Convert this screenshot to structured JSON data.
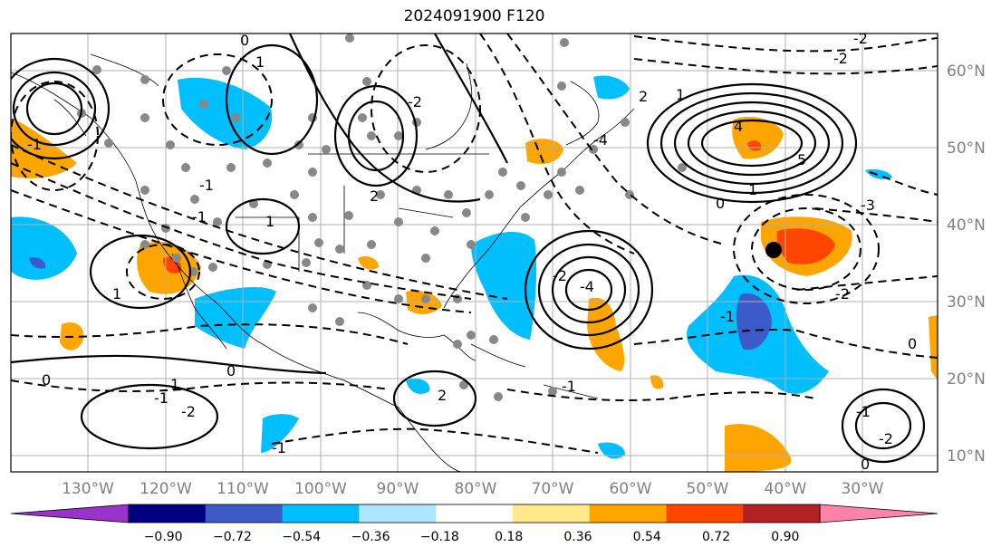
{
  "title": "2024091900 F120",
  "map": {
    "lon_ticks": [
      "130°W",
      "120°W",
      "110°W",
      "100°W",
      "90°W",
      "80°W",
      "70°W",
      "60°W",
      "50°W",
      "40°W",
      "30°W"
    ],
    "lat_ticks": [
      "60°N",
      "50°N",
      "40°N",
      "30°N",
      "20°N",
      "10°N"
    ],
    "contour_labels": [
      "0",
      "1",
      "-1",
      "-2",
      "2",
      "-1",
      "-1",
      "1",
      "1",
      "0",
      "0",
      "-1",
      "1",
      "-2",
      "2",
      "-2",
      "-4",
      "4",
      "5",
      "-4",
      "2",
      "1",
      "0",
      "-2",
      "-3",
      "-2",
      "-1",
      "0",
      "-2",
      "-1",
      "0",
      "-1",
      "-2",
      "1",
      "-1"
    ],
    "marker_lon": "40°W",
    "marker_lat": "37°N"
  },
  "colorbar": {
    "levels": [
      "−0.90",
      "−0.72",
      "−0.54",
      "−0.36",
      "−0.18",
      "0.18",
      "0.36",
      "0.54",
      "0.72",
      "0.90"
    ],
    "colors": [
      "#9933cc",
      "#000080",
      "#3c5ac8",
      "#00bfff",
      "#aee6ff",
      "#ffffff",
      "#ffe98a",
      "#ffa500",
      "#ff4500",
      "#b22222",
      "#ff82ab",
      "#ff82ab"
    ]
  }
}
